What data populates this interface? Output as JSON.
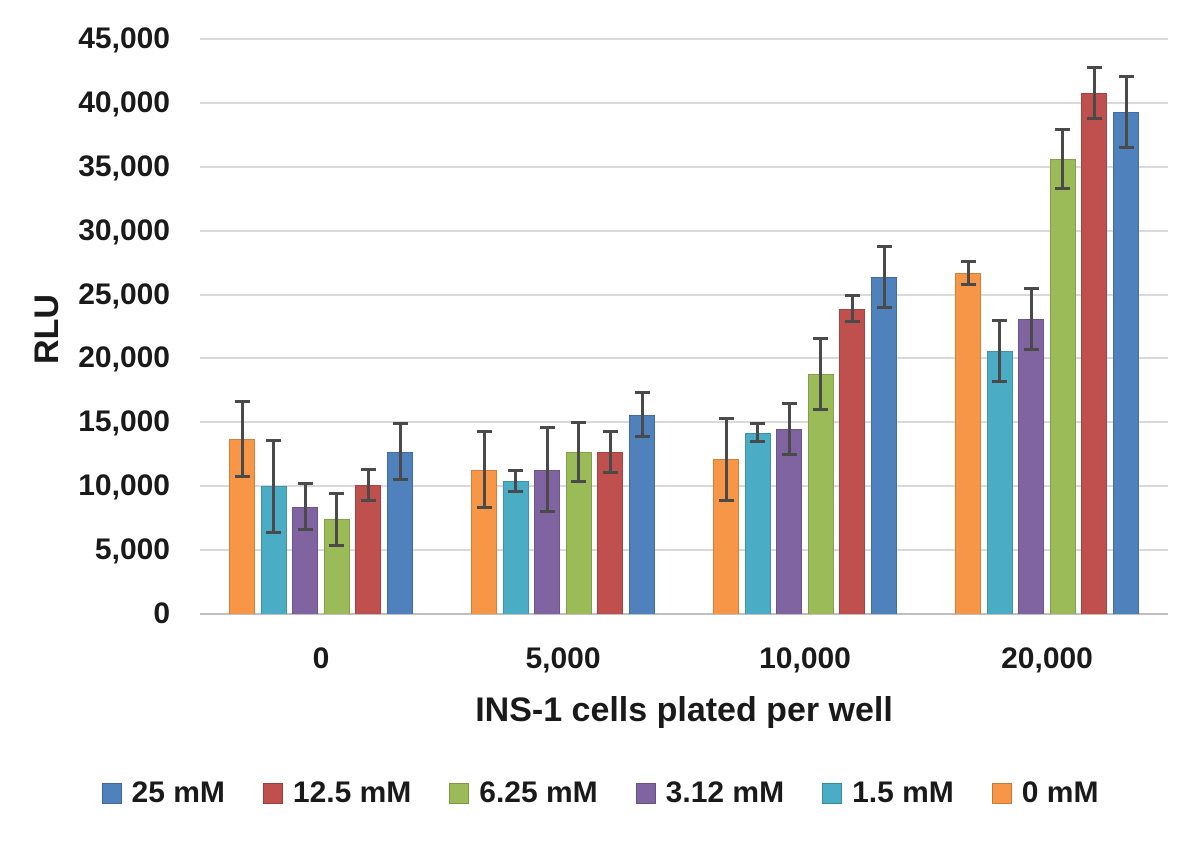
{
  "chart_data": {
    "type": "bar",
    "title": "",
    "ylabel": "RLU",
    "xlabel": "INS-1 cells plated per well",
    "categories": [
      "0",
      "5,000",
      "10,000",
      "20,000"
    ],
    "y_ticks": [
      "0",
      "5,000",
      "10,000",
      "15,000",
      "20,000",
      "25,000",
      "30,000",
      "35,000",
      "40,000",
      "45,000"
    ],
    "ylim": [
      0,
      45000
    ],
    "y_step": 5000,
    "grid": true,
    "legend_position": "bottom",
    "series": [
      {
        "name": "0 mM",
        "color": "#F79646",
        "values": [
          13700,
          11300,
          12100,
          26700
        ],
        "errors": [
          2900,
          3000,
          3200,
          900
        ]
      },
      {
        "name": "1.5 mM",
        "color": "#4BACC6",
        "values": [
          10000,
          10400,
          14200,
          20600
        ],
        "errors": [
          3600,
          800,
          700,
          2400
        ]
      },
      {
        "name": "3.12 mM",
        "color": "#8064A2",
        "values": [
          8400,
          11300,
          14500,
          23100
        ],
        "errors": [
          1800,
          3300,
          2000,
          2400
        ]
      },
      {
        "name": "6.25 mM",
        "color": "#9BBB59",
        "values": [
          7400,
          12700,
          18800,
          35600
        ],
        "errors": [
          2000,
          2300,
          2800,
          2300
        ]
      },
      {
        "name": "12.5 mM",
        "color": "#C0504D",
        "values": [
          10100,
          12700,
          23900,
          40800
        ],
        "errors": [
          1200,
          1600,
          1000,
          2000
        ]
      },
      {
        "name": "25 mM",
        "color": "#4F81BD",
        "values": [
          12700,
          15600,
          26400,
          39300
        ],
        "errors": [
          2200,
          1700,
          2400,
          2800
        ]
      }
    ],
    "legend": [
      {
        "label": "25 mM",
        "color": "#4F81BD"
      },
      {
        "label": "12.5 mM",
        "color": "#C0504D"
      },
      {
        "label": "6.25 mM",
        "color": "#9BBB59"
      },
      {
        "label": "3.12 mM",
        "color": "#8064A2"
      },
      {
        "label": "1.5 mM",
        "color": "#4BACC6"
      },
      {
        "label": "0 mM",
        "color": "#F79646"
      }
    ],
    "colors": {
      "error_bar": "#4A4A4A",
      "gridline": "#D9D9D9",
      "axis_line": "#BFBFBF",
      "text": "#1A1A1A",
      "background": "#FFFFFF"
    }
  }
}
